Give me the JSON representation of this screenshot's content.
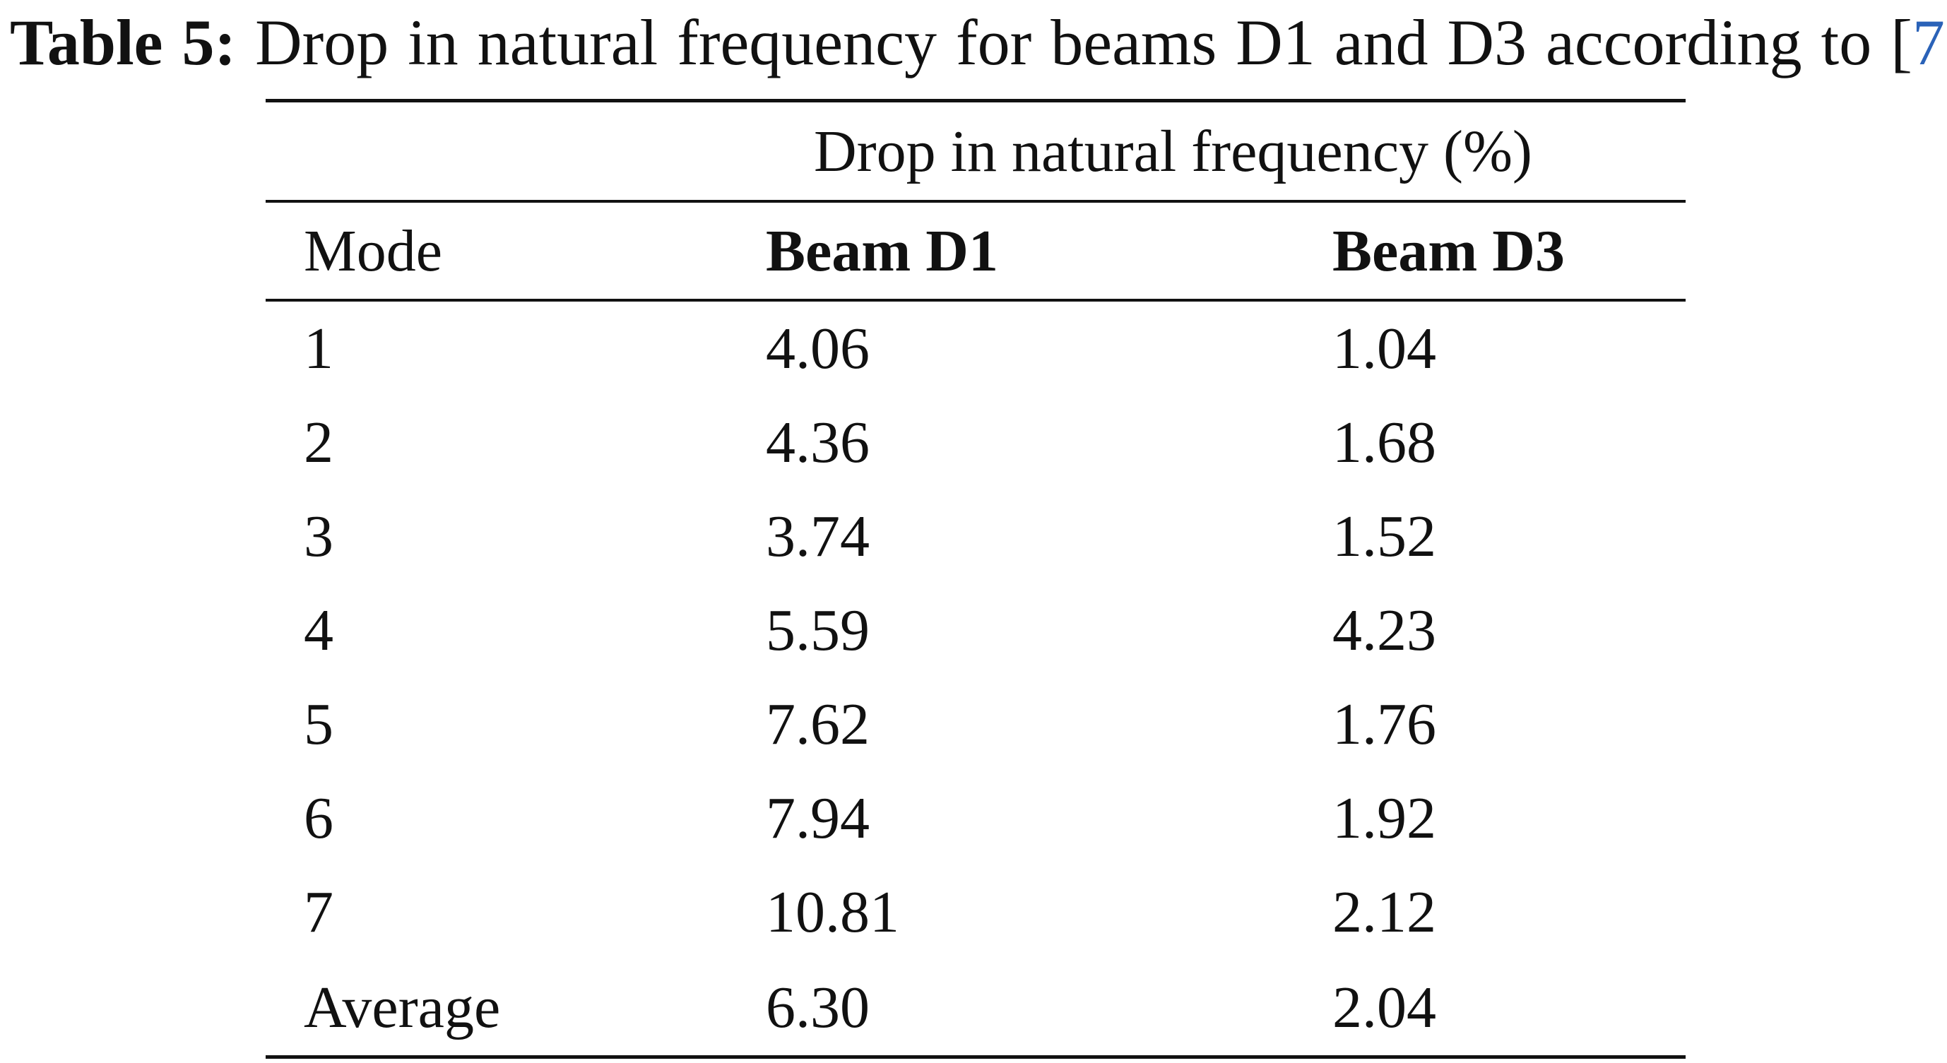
{
  "caption": {
    "label": "Table 5:",
    "text": "Drop in natural frequency for beams D1 and D3 according to",
    "ref_open": "[",
    "ref": "7",
    "ref_close": "]"
  },
  "table": {
    "group_header": "Drop in natural frequency (%)",
    "columns": [
      "Mode",
      "Beam D1",
      "Beam D3"
    ],
    "rows": [
      [
        "1",
        "4.06",
        "1.04"
      ],
      [
        "2",
        "4.36",
        "1.68"
      ],
      [
        "3",
        "3.74",
        "1.52"
      ],
      [
        "4",
        "5.59",
        "4.23"
      ],
      [
        "5",
        "7.62",
        "1.76"
      ],
      [
        "6",
        "7.94",
        "1.92"
      ],
      [
        "7",
        "10.81",
        "2.12"
      ],
      [
        "Average",
        "6.30",
        "2.04"
      ]
    ]
  }
}
